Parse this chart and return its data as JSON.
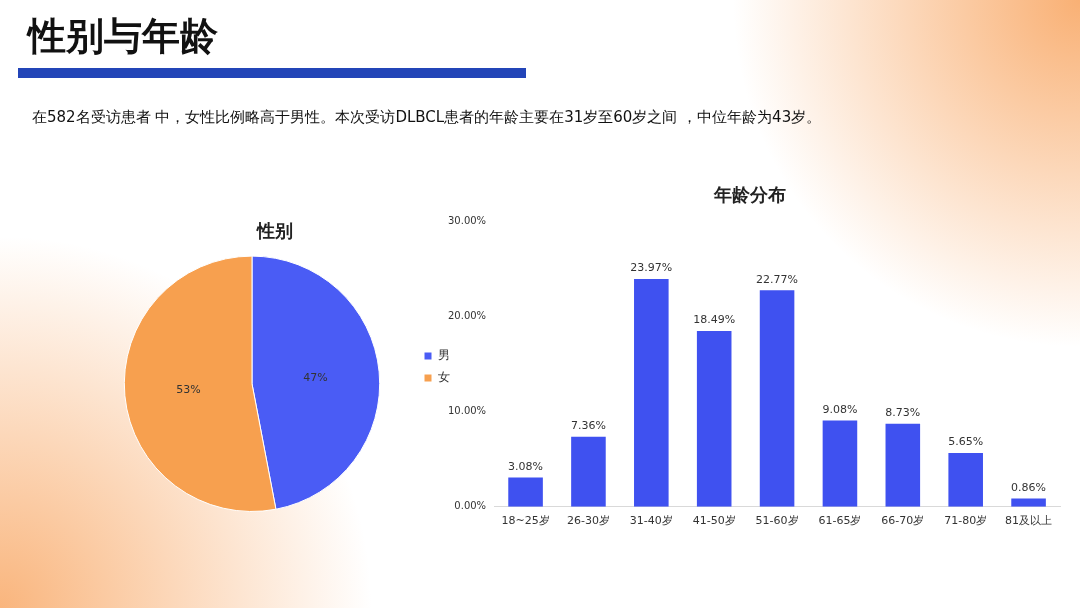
{
  "chart_data": [
    {
      "type": "other",
      "title": "性别与年龄",
      "annotations": [
        "在582名受访患者 中，女性比例略高于男性。本次受访DLBCL患者的年龄主要在31岁至60岁之间 ，中位年龄为43岁。"
      ]
    },
    {
      "type": "pie",
      "title": "性别",
      "categories": [
        "男",
        "女"
      ],
      "values": [
        47,
        53
      ],
      "colors": [
        "#4a5cf5",
        "#f7a04f"
      ],
      "value_labels": [
        "47%",
        "53%"
      ],
      "legend": "right"
    },
    {
      "type": "bar",
      "title": "年龄分布",
      "categories": [
        "18~25岁",
        "26-30岁",
        "31-40岁",
        "41-50岁",
        "51-60岁",
        "61-65岁",
        "66-70岁",
        "71-80岁",
        "81及以上"
      ],
      "values": [
        3.08,
        7.36,
        23.97,
        18.49,
        22.77,
        9.08,
        8.73,
        5.65,
        0.86
      ],
      "color": "#3f51f0",
      "value_labels": [
        "3.08%",
        "7.36%",
        "23.97%",
        "18.49%",
        "22.77%",
        "9.08%",
        "8.73%",
        "5.65%",
        "0.86%"
      ],
      "ylim": [
        0,
        30
      ],
      "yticks": [
        {
          "value": 0,
          "label": "0.00%"
        },
        {
          "value": 10,
          "label": "10.00%"
        },
        {
          "value": 20,
          "label": "20.00%"
        },
        {
          "value": 30,
          "label": "30.00%"
        }
      ],
      "legend": false
    }
  ]
}
